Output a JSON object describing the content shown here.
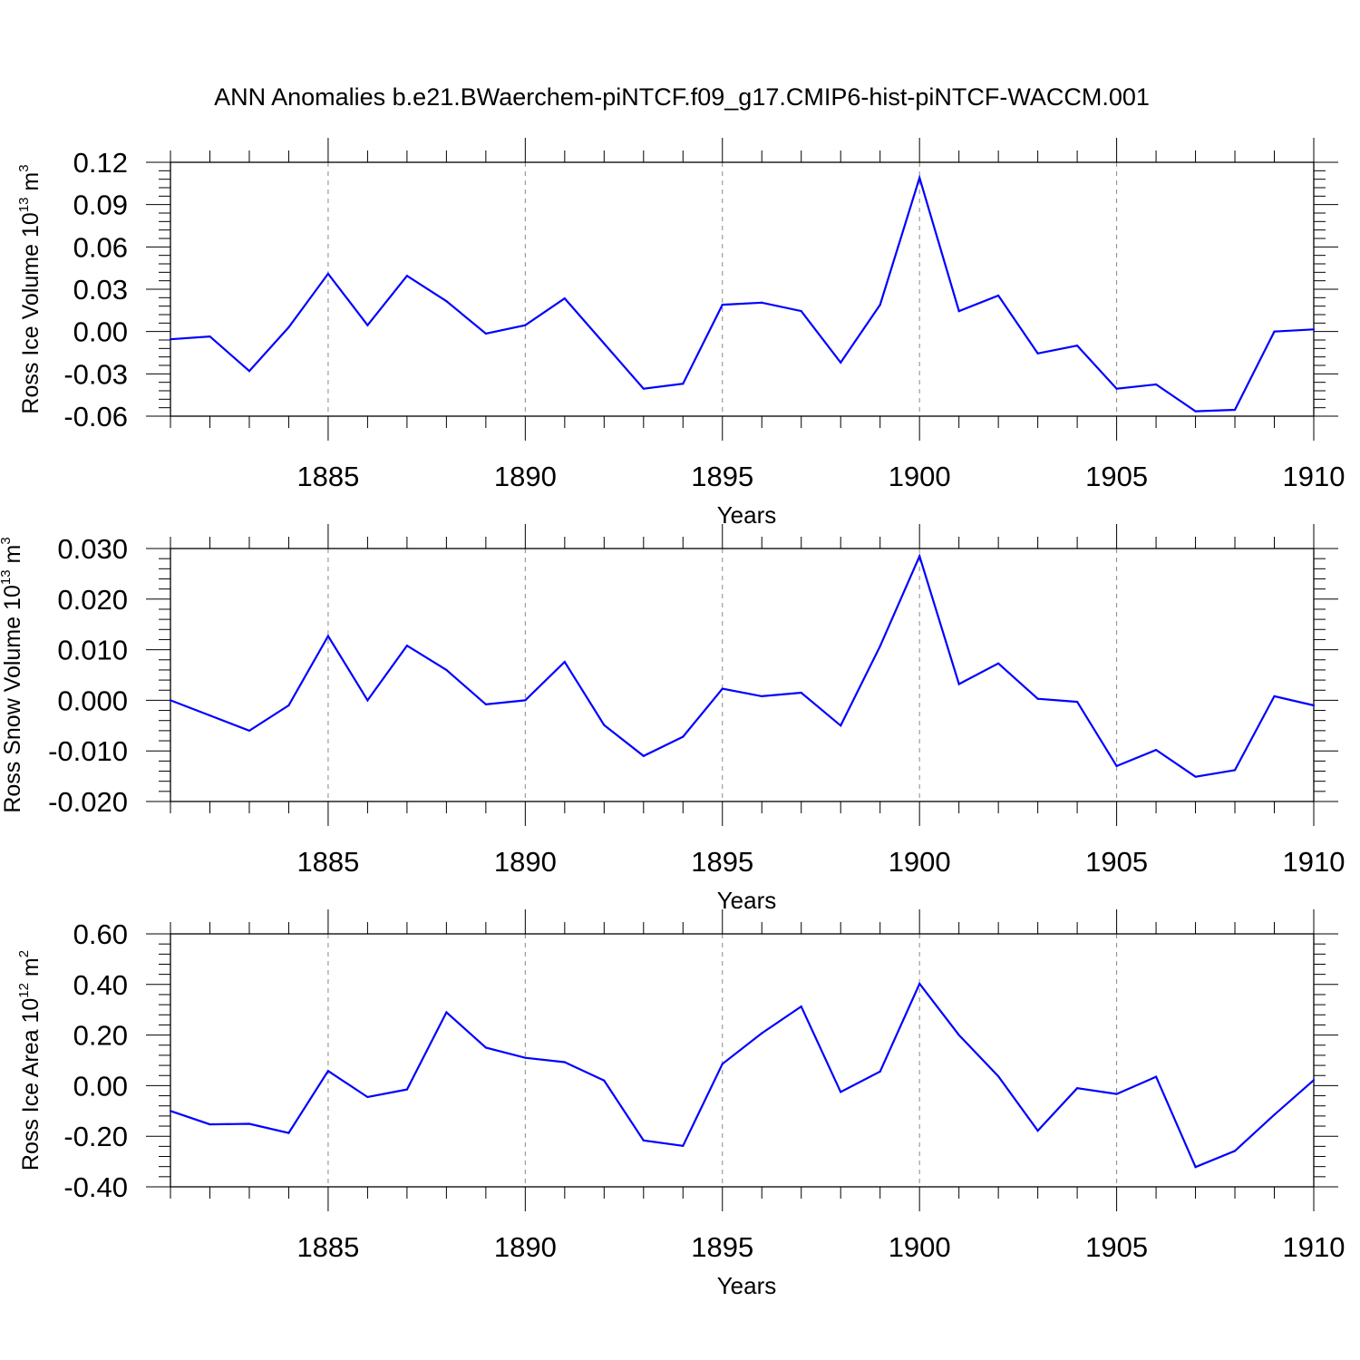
{
  "title": "ANN Anomalies b.e21.BWaerchem-piNTCF.f09_g17.CMIP6-hist-piNTCF-WACCM.001",
  "colors": {
    "line": "#0000ff",
    "axis": "#000000",
    "grid": "#888888"
  },
  "chart_data": [
    {
      "type": "line",
      "ylabel_main": "Ross Ice Volume 10",
      "ylabel_exp": "13",
      "ylabel_unit": " m",
      "ylabel_unit_exp": "3",
      "xlabel": "Years",
      "xlim": [
        1881,
        1910
      ],
      "ylim": [
        -0.06,
        0.12
      ],
      "xticks": [
        1885,
        1890,
        1895,
        1900,
        1905,
        1910
      ],
      "xtick_labels": [
        "1885",
        "1890",
        "1895",
        "1900",
        "1905",
        "1910"
      ],
      "yticks": [
        -0.06,
        -0.03,
        0.0,
        0.03,
        0.06,
        0.09,
        0.12
      ],
      "ytick_labels": [
        "-0.06",
        "-0.03",
        "0.00",
        "0.03",
        "0.06",
        "0.09",
        "0.12"
      ],
      "grid": "vertical-dashed",
      "x": [
        1881,
        1882,
        1883,
        1884,
        1885,
        1886,
        1887,
        1888,
        1889,
        1890,
        1891,
        1892,
        1893,
        1894,
        1895,
        1896,
        1897,
        1898,
        1899,
        1900,
        1901,
        1902,
        1903,
        1904,
        1905,
        1906,
        1907,
        1908,
        1909,
        1910
      ],
      "values": [
        -0.0055,
        -0.0035,
        -0.028,
        0.003,
        0.041,
        0.0045,
        0.0395,
        0.0215,
        -0.0015,
        0.0045,
        0.0235,
        -0.0085,
        -0.0405,
        -0.037,
        0.019,
        0.0205,
        0.0145,
        -0.022,
        0.019,
        0.109,
        0.0145,
        0.0255,
        -0.0155,
        -0.01,
        -0.0405,
        -0.0375,
        -0.0565,
        -0.0555,
        0.0,
        0.0015
      ]
    },
    {
      "type": "line",
      "ylabel_main": "Ross Snow Volume 10",
      "ylabel_exp": "13",
      "ylabel_unit": " m",
      "ylabel_unit_exp": "3",
      "xlabel": "Years",
      "xlim": [
        1881,
        1910
      ],
      "ylim": [
        -0.02,
        0.03
      ],
      "xticks": [
        1885,
        1890,
        1895,
        1900,
        1905,
        1910
      ],
      "xtick_labels": [
        "1885",
        "1890",
        "1895",
        "1900",
        "1905",
        "1910"
      ],
      "yticks": [
        -0.02,
        -0.01,
        0.0,
        0.01,
        0.02,
        0.03
      ],
      "ytick_labels": [
        "-0.020",
        "-0.010",
        "0.000",
        "0.010",
        "0.020",
        "0.030"
      ],
      "grid": "vertical-dashed",
      "x": [
        1881,
        1882,
        1883,
        1884,
        1885,
        1886,
        1887,
        1888,
        1889,
        1890,
        1891,
        1892,
        1893,
        1894,
        1895,
        1896,
        1897,
        1898,
        1899,
        1900,
        1901,
        1902,
        1903,
        1904,
        1905,
        1906,
        1907,
        1908,
        1909,
        1910
      ],
      "values": [
        0.0,
        -0.003,
        -0.006,
        -0.001,
        0.0127,
        0.0,
        0.0108,
        0.006,
        -0.0008,
        0.0,
        0.0076,
        -0.0049,
        -0.011,
        -0.0072,
        0.0023,
        0.0008,
        0.0015,
        -0.005,
        0.0107,
        0.0285,
        0.0032,
        0.0073,
        0.0003,
        -0.0003,
        -0.013,
        -0.0098,
        -0.0151,
        -0.0138,
        0.0008,
        -0.001
      ]
    },
    {
      "type": "line",
      "ylabel_main": "Ross Ice Area 10",
      "ylabel_exp": "12",
      "ylabel_unit": " m",
      "ylabel_unit_exp": "2",
      "xlabel": "Years",
      "xlim": [
        1881,
        1910
      ],
      "ylim": [
        -0.4,
        0.6
      ],
      "xticks": [
        1885,
        1890,
        1895,
        1900,
        1905,
        1910
      ],
      "xtick_labels": [
        "1885",
        "1890",
        "1895",
        "1900",
        "1905",
        "1910"
      ],
      "yticks": [
        -0.4,
        -0.2,
        0.0,
        0.2,
        0.4,
        0.6
      ],
      "ytick_labels": [
        "-0.40",
        "-0.20",
        "0.00",
        "0.20",
        "0.40",
        "0.60"
      ],
      "grid": "vertical-dashed",
      "x": [
        1881,
        1882,
        1883,
        1884,
        1885,
        1886,
        1887,
        1888,
        1889,
        1890,
        1891,
        1892,
        1893,
        1894,
        1895,
        1896,
        1897,
        1898,
        1899,
        1900,
        1901,
        1902,
        1903,
        1904,
        1905,
        1906,
        1907,
        1908,
        1909,
        1910
      ],
      "values": [
        -0.1,
        -0.153,
        -0.151,
        -0.187,
        0.058,
        -0.045,
        -0.015,
        0.29,
        0.15,
        0.11,
        0.093,
        0.02,
        -0.217,
        -0.238,
        0.086,
        0.207,
        0.313,
        -0.025,
        0.056,
        0.403,
        0.2,
        0.037,
        -0.178,
        -0.01,
        -0.033,
        0.035,
        -0.322,
        -0.258,
        -0.115,
        0.022
      ]
    }
  ]
}
